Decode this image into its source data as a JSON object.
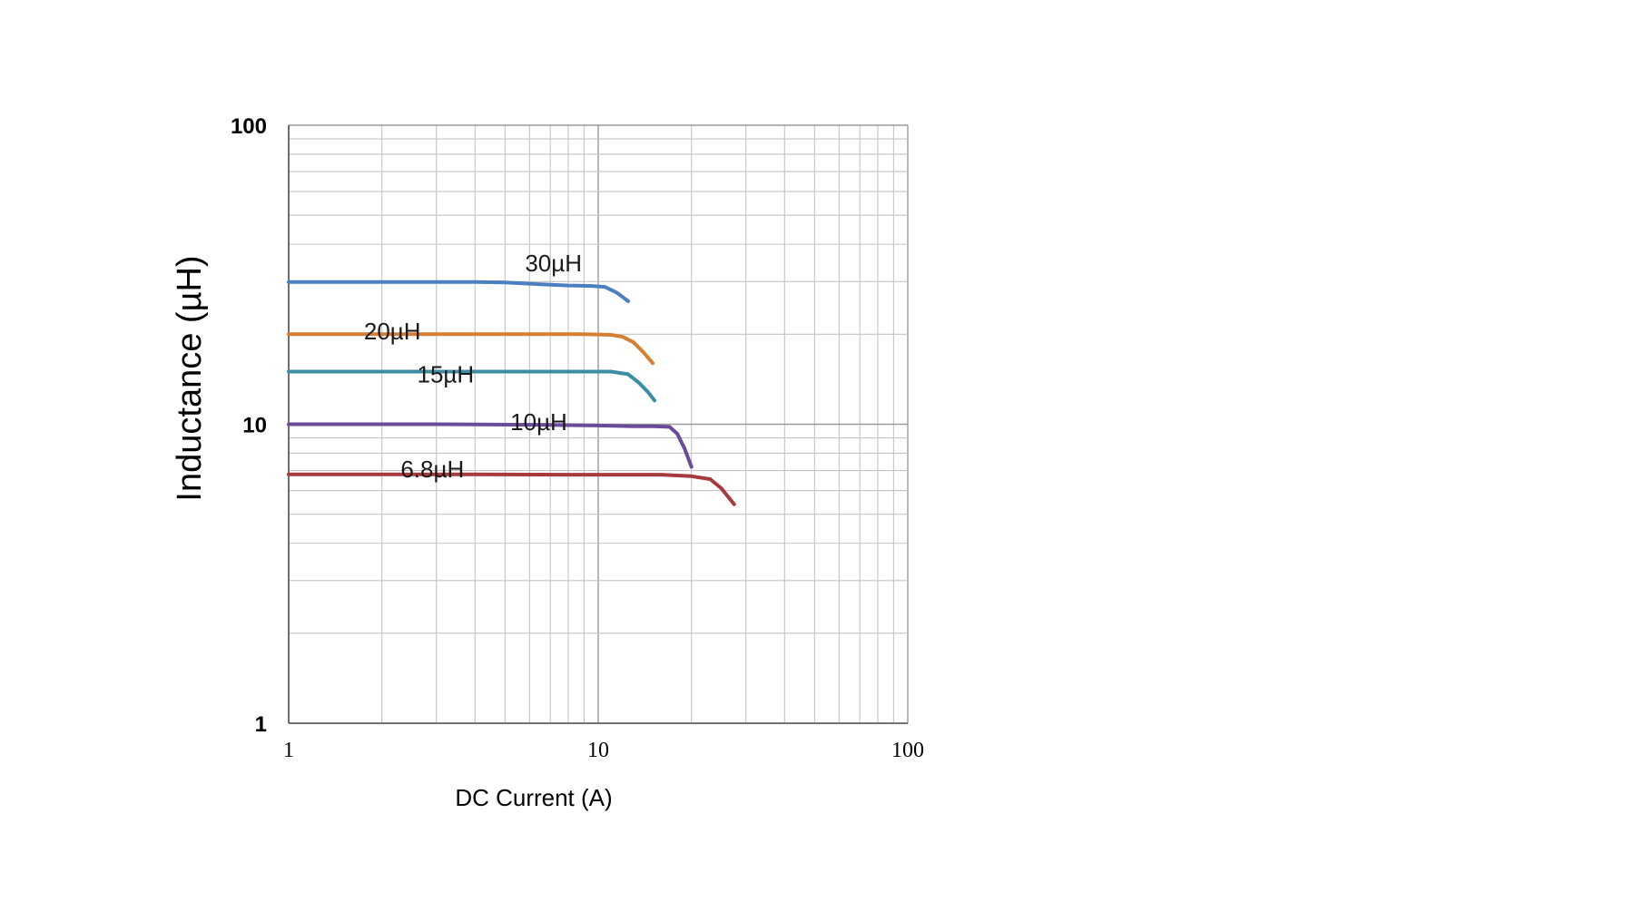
{
  "chart_data": {
    "type": "line",
    "title": "",
    "xlabel": "DC Current (A)",
    "ylabel": "Inductance (µH)",
    "xscale": "log",
    "yscale": "log",
    "xlim": [
      1,
      100
    ],
    "ylim": [
      1,
      100
    ],
    "grid": true,
    "x_ticks": [
      {
        "value": 1,
        "label": "1"
      },
      {
        "value": 10,
        "label": "10"
      },
      {
        "value": 100,
        "label": "100"
      }
    ],
    "y_ticks": [
      {
        "value": 1,
        "label": "1"
      },
      {
        "value": 10,
        "label": "10"
      },
      {
        "value": 100,
        "label": "100"
      }
    ],
    "series": [
      {
        "name": "30µH",
        "color": "#4a7fc1",
        "label_at": [
          5.8,
          32.5
        ],
        "points": [
          [
            1,
            29.9
          ],
          [
            2,
            29.9
          ],
          [
            4,
            29.9
          ],
          [
            5,
            29.8
          ],
          [
            6.5,
            29.4
          ],
          [
            8,
            29.1
          ],
          [
            9.5,
            29.0
          ],
          [
            10.5,
            28.8
          ],
          [
            11.5,
            27.5
          ],
          [
            12.5,
            25.8
          ]
        ]
      },
      {
        "name": "20µH",
        "color": "#d57f35",
        "label_at": [
          1.75,
          19.2
        ],
        "points": [
          [
            1,
            20.0
          ],
          [
            3,
            20.0
          ],
          [
            6,
            20.0
          ],
          [
            9,
            20.0
          ],
          [
            11,
            19.9
          ],
          [
            12,
            19.6
          ],
          [
            13,
            18.8
          ],
          [
            14,
            17.4
          ],
          [
            15,
            16.0
          ]
        ]
      },
      {
        "name": "15µH",
        "color": "#3b8ea3",
        "label_at": [
          2.6,
          13.8
        ],
        "points": [
          [
            1,
            15.0
          ],
          [
            4,
            15.0
          ],
          [
            8,
            15.0
          ],
          [
            11,
            15.0
          ],
          [
            12.5,
            14.7
          ],
          [
            13.5,
            13.8
          ],
          [
            14.5,
            12.8
          ],
          [
            15.2,
            12.0
          ]
        ]
      },
      {
        "name": "10µH",
        "color": "#6a4b9a",
        "label_at": [
          5.2,
          9.55
        ],
        "points": [
          [
            1,
            10.0
          ],
          [
            3,
            10.0
          ],
          [
            7,
            9.95
          ],
          [
            10,
            9.9
          ],
          [
            13,
            9.85
          ],
          [
            15,
            9.85
          ],
          [
            17,
            9.8
          ],
          [
            18,
            9.3
          ],
          [
            19,
            8.3
          ],
          [
            20,
            7.2
          ]
        ]
      },
      {
        "name": "6.8µH",
        "color": "#a63a3d",
        "label_at": [
          2.3,
          6.65
        ],
        "points": [
          [
            1,
            6.8
          ],
          [
            4,
            6.8
          ],
          [
            8,
            6.78
          ],
          [
            12,
            6.78
          ],
          [
            16,
            6.78
          ],
          [
            20,
            6.7
          ],
          [
            23,
            6.55
          ],
          [
            25,
            6.1
          ],
          [
            27.5,
            5.4
          ]
        ]
      }
    ]
  }
}
